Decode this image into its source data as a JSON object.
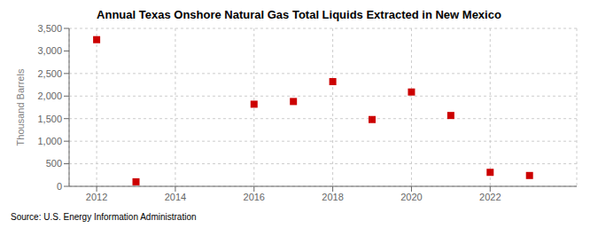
{
  "chart_data": {
    "type": "scatter",
    "title": "Annual Texas Onshore Natural Gas Total Liquids Extracted in New Mexico",
    "y_label": "Thousand Barrels",
    "annotation": "Source: U.S. Energy Information Administration",
    "x": [
      2012,
      2013,
      2016,
      2017,
      2018,
      2019,
      2020,
      2021,
      2022,
      2023
    ],
    "values": [
      3250,
      100,
      1820,
      1880,
      2320,
      1480,
      2090,
      1570,
      310,
      240
    ],
    "color": "#cc0000",
    "marker": "square",
    "xlim": [
      2011.3,
      2024.2
    ],
    "ylim": [
      0,
      3500
    ],
    "xticks": [
      2012,
      2014,
      2016,
      2018,
      2020,
      2022
    ],
    "yticks": [
      0,
      500,
      {
        "value": 1000,
        "label": "1,000"
      },
      {
        "value": 1500,
        "label": "1,500"
      },
      {
        "value": 2000,
        "label": "2,000"
      },
      {
        "value": 2500,
        "label": "2,500"
      },
      {
        "value": 3000,
        "label": "3,000"
      },
      {
        "value": 3500,
        "label": "3,500"
      }
    ],
    "grid": true
  }
}
